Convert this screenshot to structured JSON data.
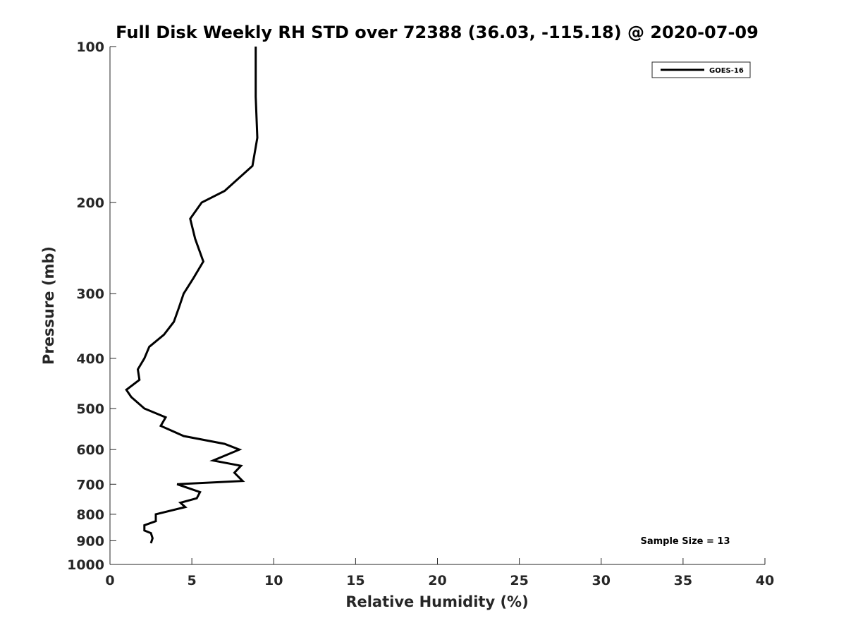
{
  "chart_data": {
    "type": "line",
    "title": "Full Disk Weekly RH STD over 72388 (36.03, -115.18) @ 2020-07-09",
    "xlabel": "Relative Humidity (%)",
    "ylabel": "Pressure (mb)",
    "xlim": [
      0,
      40
    ],
    "ylim": [
      100,
      1000
    ],
    "y_scale": "log",
    "y_reversed": true,
    "x_ticks": [
      0,
      5,
      10,
      15,
      20,
      25,
      30,
      35,
      40
    ],
    "y_ticks": [
      100,
      200,
      300,
      400,
      500,
      600,
      700,
      800,
      900,
      1000
    ],
    "grid": false,
    "legend_position": "top-right",
    "series": [
      {
        "name": "GOES-16",
        "color": "#000000",
        "points": [
          [
            8.9,
            100
          ],
          [
            8.9,
            125
          ],
          [
            9.0,
            150
          ],
          [
            8.7,
            170
          ],
          [
            7.0,
            190
          ],
          [
            5.6,
            200
          ],
          [
            4.9,
            215
          ],
          [
            5.2,
            235
          ],
          [
            5.7,
            260
          ],
          [
            5.1,
            280
          ],
          [
            4.5,
            300
          ],
          [
            4.2,
            320
          ],
          [
            3.9,
            340
          ],
          [
            3.3,
            360
          ],
          [
            2.4,
            380
          ],
          [
            2.1,
            400
          ],
          [
            1.7,
            420
          ],
          [
            1.8,
            440
          ],
          [
            1.0,
            460
          ],
          [
            1.3,
            475
          ],
          [
            2.1,
            500
          ],
          [
            3.4,
            520
          ],
          [
            3.1,
            540
          ],
          [
            4.5,
            565
          ],
          [
            7.0,
            585
          ],
          [
            7.9,
            600
          ],
          [
            6.3,
            630
          ],
          [
            8.0,
            645
          ],
          [
            7.6,
            665
          ],
          [
            8.1,
            690
          ],
          [
            4.1,
            700
          ],
          [
            5.5,
            725
          ],
          [
            5.3,
            745
          ],
          [
            4.3,
            760
          ],
          [
            4.6,
            775
          ],
          [
            2.8,
            800
          ],
          [
            2.8,
            825
          ],
          [
            2.1,
            840
          ],
          [
            2.1,
            860
          ],
          [
            2.5,
            870
          ],
          [
            2.6,
            890
          ],
          [
            2.5,
            910
          ]
        ]
      }
    ],
    "annotations": [
      "Sample Size = 13"
    ]
  }
}
